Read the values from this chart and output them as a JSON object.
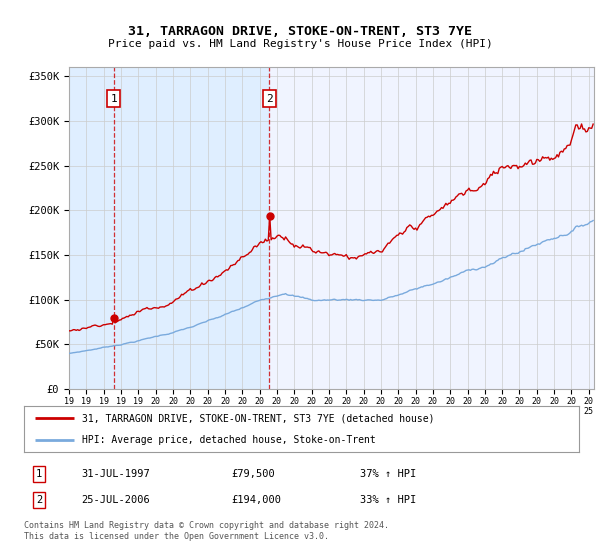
{
  "title": "31, TARRAGON DRIVE, STOKE-ON-TRENT, ST3 7YE",
  "subtitle": "Price paid vs. HM Land Registry's House Price Index (HPI)",
  "legend_line1": "31, TARRAGON DRIVE, STOKE-ON-TRENT, ST3 7YE (detached house)",
  "legend_line2": "HPI: Average price, detached house, Stoke-on-Trent",
  "footnote": "Contains HM Land Registry data © Crown copyright and database right 2024.\nThis data is licensed under the Open Government Licence v3.0.",
  "table_rows": [
    {
      "num": "1",
      "date": "31-JUL-1997",
      "price": "£79,500",
      "change": "37% ↑ HPI"
    },
    {
      "num": "2",
      "date": "25-JUL-2006",
      "price": "£194,000",
      "change": "33% ↑ HPI"
    }
  ],
  "sale1_year": 1997.58,
  "sale1_price": 79500,
  "sale2_year": 2006.56,
  "sale2_price": 194000,
  "hpi_color": "#7aaadd",
  "price_color": "#cc0000",
  "shade_color": "#ddeeff",
  "plot_bg_color": "#f0f4ff",
  "ylim_max": 360000,
  "xlim_start": 1995.0,
  "xlim_end": 2025.3,
  "yticks": [
    0,
    50000,
    100000,
    150000,
    200000,
    250000,
    300000,
    350000
  ],
  "ytick_labels": [
    "£0",
    "£50K",
    "£100K",
    "£150K",
    "£200K",
    "£250K",
    "£300K",
    "£350K"
  ]
}
